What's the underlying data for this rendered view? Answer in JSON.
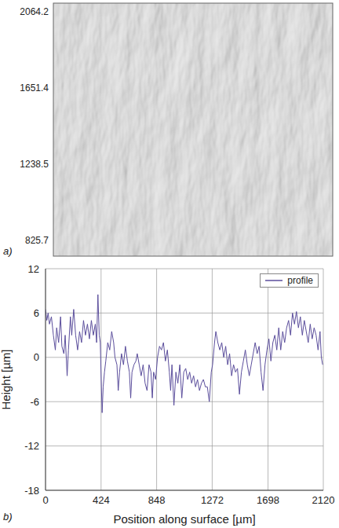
{
  "chart_data": [
    {
      "type": "image",
      "panel": "a)",
      "ylim": [
        740,
        2110
      ],
      "yticks": [
        825.7,
        1238.5,
        1651.4,
        2064.2
      ]
    },
    {
      "type": "line",
      "panel": "b)",
      "xlabel": "Position along surface [µm]",
      "ylabel": "Height [µm]",
      "xlim": [
        0,
        2120
      ],
      "xticks": [
        0,
        424,
        848,
        1272,
        1698,
        2120
      ],
      "ylim": [
        -18,
        12
      ],
      "yticks": [
        -18,
        -12,
        -6,
        0,
        6,
        12
      ],
      "grid": true,
      "legend": "upper right",
      "x": [
        0,
        10,
        20,
        30,
        45,
        60,
        75,
        85,
        100,
        115,
        125,
        140,
        150,
        165,
        175,
        190,
        200,
        215,
        230,
        245,
        260,
        275,
        290,
        305,
        320,
        335,
        350,
        365,
        380,
        390,
        400,
        410,
        418,
        425,
        432,
        440,
        450,
        460,
        475,
        490,
        505,
        520,
        530,
        545,
        555,
        565,
        580,
        595,
        610,
        625,
        640,
        650,
        660,
        675,
        690,
        700,
        715,
        730,
        745,
        760,
        775,
        790,
        805,
        815,
        825,
        840,
        855,
        870,
        885,
        900,
        915,
        930,
        945,
        955,
        965,
        980,
        995,
        1010,
        1025,
        1040,
        1055,
        1070,
        1085,
        1100,
        1115,
        1130,
        1145,
        1160,
        1175,
        1190,
        1205,
        1220,
        1235,
        1250,
        1265,
        1275,
        1290,
        1300,
        1315,
        1330,
        1345,
        1360,
        1375,
        1390,
        1405,
        1420,
        1435,
        1450,
        1465,
        1480,
        1495,
        1510,
        1525,
        1540,
        1555,
        1570,
        1585,
        1600,
        1615,
        1630,
        1645,
        1660,
        1675,
        1690,
        1705,
        1720,
        1735,
        1750,
        1765,
        1780,
        1795,
        1810,
        1825,
        1840,
        1855,
        1870,
        1885,
        1900,
        1915,
        1930,
        1945,
        1960,
        1975,
        1990,
        2005,
        2020,
        2035,
        2050,
        2065,
        2080,
        2095,
        2105,
        2115
      ],
      "series": [
        {
          "name": "profile",
          "color": "#5b4e9c",
          "values": [
            6.5,
            5,
            6,
            4.5,
            5.5,
            3,
            1,
            4,
            2,
            5.5,
            1.5,
            0.5,
            3,
            -2.5,
            1,
            5.5,
            3,
            6.5,
            3,
            1,
            3.5,
            2,
            5,
            3,
            4.5,
            2.5,
            5,
            3,
            4.5,
            2,
            8.5,
            3,
            2,
            -3,
            -7.5,
            -4,
            -2,
            -0.5,
            2,
            1,
            3.5,
            2,
            0,
            -1,
            -4.5,
            -2,
            0.5,
            -1,
            1.5,
            -0.5,
            -2,
            -5.5,
            -2,
            -1,
            -0.5,
            0.5,
            -1,
            -2.5,
            -1,
            -3.5,
            -4.5,
            -1,
            -2,
            -5.5,
            -2,
            -3,
            0,
            1.5,
            1,
            2,
            -0.5,
            1,
            -2,
            -4.5,
            -1,
            -6.5,
            -2,
            -3.5,
            -1,
            -5.5,
            -2,
            -1.5,
            -3,
            -2,
            -3.5,
            -2.5,
            -4,
            -3,
            -4.5,
            -3.5,
            -3,
            -4,
            -4,
            -6,
            -2,
            -1,
            2,
            3.5,
            2,
            1,
            2,
            0,
            1.5,
            -1,
            0.5,
            -2.5,
            -1,
            -2,
            -1.5,
            -5,
            -2,
            -0.5,
            1,
            -1,
            -2.5,
            -1,
            0.5,
            2,
            0.5,
            1.5,
            -2,
            -4.5,
            -1,
            1,
            2.5,
            -0.5,
            2,
            3,
            1,
            4,
            1,
            3.5,
            2,
            4,
            5,
            3,
            6,
            4.5,
            6.2,
            4,
            5.5,
            3,
            5,
            3.5,
            2,
            4.5,
            2.5,
            4,
            3,
            1,
            3.5,
            0,
            -1
          ]
        }
      ]
    }
  ]
}
